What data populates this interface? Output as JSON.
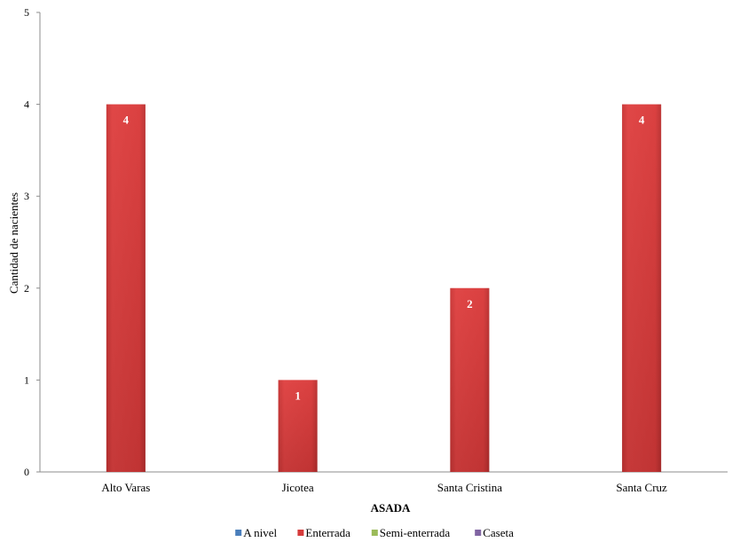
{
  "chart_data": {
    "type": "bar",
    "categories": [
      "Alto Varas",
      "Jicotea",
      "Santa Cristina",
      "Santa Cruz"
    ],
    "series": [
      {
        "name": "A nivel",
        "color": "#4a7ebb",
        "values": [
          0,
          0,
          0,
          0
        ]
      },
      {
        "name": "Enterrada",
        "color": "#d63b3b",
        "values": [
          4,
          1,
          2,
          4
        ]
      },
      {
        "name": "Semi-enterrada",
        "color": "#9bbb59",
        "values": [
          0,
          0,
          0,
          0
        ]
      },
      {
        "name": "Caseta",
        "color": "#8064a2",
        "values": [
          0,
          0,
          0,
          0
        ]
      }
    ],
    "title": "",
    "xlabel": "ASADA",
    "ylabel": "Cantidad de nacientes",
    "ylim": [
      0,
      5
    ],
    "yticks": [
      0,
      1,
      2,
      3,
      4,
      5
    ],
    "legend_position": "bottom",
    "data_labels": true,
    "grid": false
  }
}
